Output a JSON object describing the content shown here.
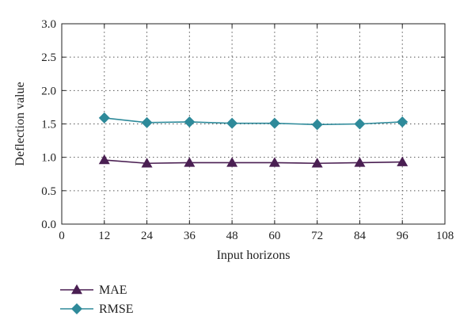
{
  "chart_data": {
    "type": "line",
    "title": "",
    "xlabel": "Input horizons",
    "ylabel": "Deflection value",
    "xlim": [
      0,
      108
    ],
    "ylim": [
      0,
      3.0
    ],
    "x_ticks": [
      "0",
      "12",
      "24",
      "36",
      "48",
      "60",
      "72",
      "84",
      "96",
      "108"
    ],
    "y_ticks": [
      "0.0",
      "0.5",
      "1.0",
      "1.5",
      "2.0",
      "2.5",
      "3.0"
    ],
    "x": [
      12,
      24,
      36,
      48,
      60,
      72,
      84,
      96
    ],
    "grid": true,
    "legend_position": "bottom-left",
    "series": [
      {
        "name": "MAE",
        "marker": "triangle",
        "color": "#4a1f52",
        "values": [
          0.96,
          0.91,
          0.92,
          0.92,
          0.92,
          0.91,
          0.92,
          0.93
        ]
      },
      {
        "name": "RMSE",
        "marker": "diamond",
        "color": "#2e8a9a",
        "values": [
          1.59,
          1.52,
          1.53,
          1.51,
          1.51,
          1.49,
          1.5,
          1.53
        ]
      }
    ]
  }
}
